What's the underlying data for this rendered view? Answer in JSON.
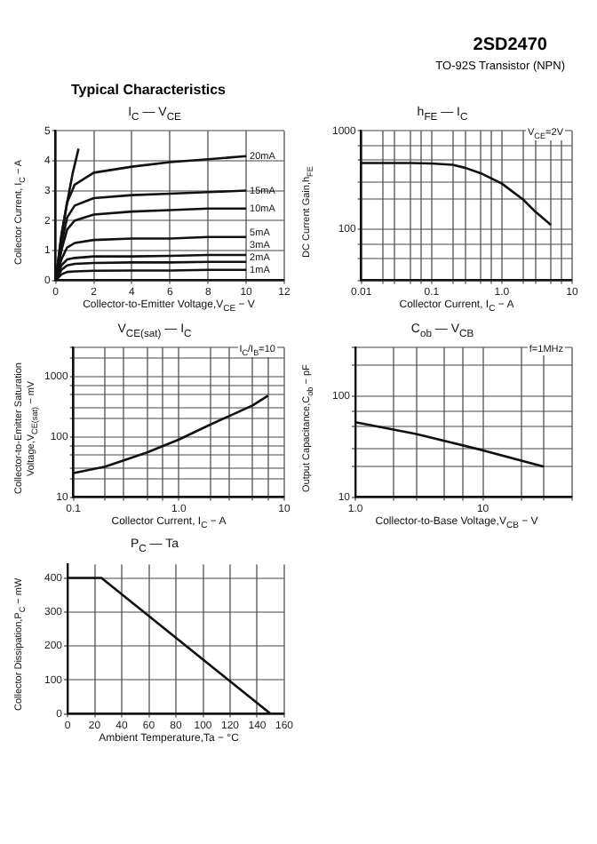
{
  "chart_data": [
    {
      "type": "other",
      "title": "2SD2470",
      "subtitle": "TO-92S Transistor (NPN)",
      "annotations": [
        "Typical Characteristics"
      ]
    },
    {
      "type": "line",
      "title": "I$_{C}$ — V$_{CE}$",
      "xlabel": "Collector-to-Emitter Voltage,V$_{CE}$ − V",
      "ylabel": "Collector Current, I$_{C}$ − A",
      "xlim": [
        0,
        12
      ],
      "xticks": [
        0,
        2,
        4,
        6,
        8,
        10,
        12
      ],
      "ylim": [
        0,
        5
      ],
      "yticks": [
        0,
        1,
        2,
        3,
        4,
        5
      ],
      "grid": true,
      "marker": "none",
      "series": [
        {
          "name": "20mA",
          "color": "#111111",
          "x": [
            0,
            0.3,
            0.6,
            1,
            2,
            4,
            6,
            8,
            10
          ],
          "values": [
            0,
            1.5,
            2.6,
            3.2,
            3.6,
            3.8,
            3.95,
            4.05,
            4.15
          ]
        },
        {
          "name": "15mA",
          "color": "#111111",
          "x": [
            0,
            0.3,
            0.6,
            1,
            2,
            4,
            6,
            8,
            10
          ],
          "values": [
            0,
            1.2,
            2.1,
            2.5,
            2.75,
            2.85,
            2.9,
            2.95,
            3.0
          ]
        },
        {
          "name": "10mA",
          "color": "#111111",
          "x": [
            0,
            0.3,
            0.6,
            1,
            2,
            4,
            6,
            8,
            10
          ],
          "values": [
            0,
            1.0,
            1.7,
            2.0,
            2.2,
            2.3,
            2.35,
            2.4,
            2.4
          ]
        },
        {
          "name": "5mA",
          "color": "#111111",
          "x": [
            0,
            0.3,
            0.6,
            1,
            2,
            4,
            6,
            8,
            10
          ],
          "values": [
            0,
            0.7,
            1.1,
            1.25,
            1.35,
            1.4,
            1.4,
            1.45,
            1.45
          ]
        },
        {
          "name": "3mA",
          "color": "#111111",
          "x": [
            0,
            0.3,
            0.6,
            1,
            2,
            4,
            6,
            8,
            10
          ],
          "values": [
            0,
            0.5,
            0.7,
            0.75,
            0.8,
            0.8,
            0.82,
            0.85,
            0.85
          ]
        },
        {
          "name": "2mA",
          "color": "#111111",
          "x": [
            0,
            0.3,
            0.6,
            1,
            2,
            4,
            6,
            8,
            10
          ],
          "values": [
            0,
            0.35,
            0.5,
            0.55,
            0.58,
            0.6,
            0.6,
            0.62,
            0.62
          ]
        },
        {
          "name": "1mA",
          "color": "#111111",
          "x": [
            0,
            0.3,
            0.6,
            1,
            2,
            4,
            6,
            8,
            10
          ],
          "values": [
            0,
            0.2,
            0.28,
            0.3,
            0.32,
            0.33,
            0.33,
            0.35,
            0.35
          ]
        },
        {
          "color": "#111111",
          "x": [
            0,
            0.3,
            0.6,
            0.9,
            1.2
          ],
          "values": [
            0,
            1.5,
            2.6,
            3.6,
            4.4
          ]
        }
      ]
    },
    {
      "type": "line",
      "title": "h$_{FE}$ — I$_{C}$",
      "xlabel": "Collector Current, I$_{C}$ − A",
      "ylabel": "DC Current Gain,h$_{FE}$",
      "log": "xy",
      "xlim": [
        0.01,
        10
      ],
      "xticks": [
        0.01,
        {
          "value": 0.02,
          "label": null
        },
        {
          "value": 0.03,
          "label": null
        },
        {
          "value": 0.05,
          "label": null
        },
        {
          "value": 0.07,
          "label": null
        },
        0.1,
        {
          "value": 0.2,
          "label": null
        },
        {
          "value": 0.3,
          "label": null
        },
        {
          "value": 0.5,
          "label": null
        },
        {
          "value": 0.7,
          "label": null
        },
        {
          "value": 1,
          "label": "1.0"
        },
        {
          "value": 2,
          "label": null
        },
        {
          "value": 3,
          "label": null
        },
        {
          "value": 5,
          "label": null
        },
        {
          "value": 7,
          "label": null
        },
        10
      ],
      "ylim": [
        30,
        1000
      ],
      "yticks": [
        {
          "value": 30,
          "label": null
        },
        {
          "value": 50,
          "label": null
        },
        {
          "value": 70,
          "label": null
        },
        100,
        {
          "value": 200,
          "label": null
        },
        {
          "value": 300,
          "label": null
        },
        {
          "value": 500,
          "label": null
        },
        {
          "value": 700,
          "label": null
        },
        1000
      ],
      "grid": true,
      "marker": "none",
      "annotations": [
        "V$_{CE}$=2V"
      ],
      "series": [
        {
          "color": "#111111",
          "x": [
            0.01,
            0.05,
            0.1,
            0.2,
            0.3,
            0.5,
            1,
            2,
            3,
            5
          ],
          "values": [
            470,
            470,
            465,
            450,
            420,
            370,
            290,
            200,
            150,
            110
          ]
        }
      ]
    },
    {
      "type": "line",
      "title": "V$_{CE(sat)}$ — I$_{C}$",
      "xlabel": "Collector Current, I$_{C}$ − A",
      "ylabel": "Collector-to-Emitter Saturation Voltage,V$_{CE(sat)}$ − mV",
      "log": "xy",
      "xlim": [
        0.1,
        10
      ],
      "xticks": [
        0.1,
        {
          "value": 0.2,
          "label": null
        },
        {
          "value": 0.3,
          "label": null
        },
        {
          "value": 0.5,
          "label": null
        },
        {
          "value": 0.7,
          "label": null
        },
        {
          "value": 1,
          "label": "1.0"
        },
        {
          "value": 2,
          "label": null
        },
        {
          "value": 3,
          "label": null
        },
        {
          "value": 5,
          "label": null
        },
        {
          "value": 7,
          "label": null
        },
        10
      ],
      "ylim": [
        10,
        3000
      ],
      "yticks": [
        10,
        {
          "value": 20,
          "label": null
        },
        {
          "value": 30,
          "label": null
        },
        {
          "value": 50,
          "label": null
        },
        {
          "value": 70,
          "label": null
        },
        100,
        {
          "value": 200,
          "label": null
        },
        {
          "value": 300,
          "label": null
        },
        {
          "value": 500,
          "label": null
        },
        {
          "value": 700,
          "label": null
        },
        1000,
        {
          "value": 2000,
          "label": null
        },
        {
          "value": 3000,
          "label": null
        }
      ],
      "grid": true,
      "marker": "none",
      "annotations": [
        "I$_{C}$/I$_{B}$=10"
      ],
      "series": [
        {
          "color": "#111111",
          "x": [
            0.1,
            0.2,
            0.5,
            1,
            2,
            5,
            7
          ],
          "values": [
            25,
            32,
            55,
            90,
            160,
            330,
            480
          ]
        }
      ]
    },
    {
      "type": "line",
      "title": "C$_{ob}$ — V$_{CB}$",
      "xlabel": "Collector-to-Base Voltage,V$_{CB}$ − V",
      "ylabel": "Output Capacitance,C$_{ob}$ − pF",
      "log": "xy",
      "xlim": [
        1,
        50
      ],
      "xticks": [
        {
          "value": 1,
          "label": "1.0"
        },
        {
          "value": 2,
          "label": null
        },
        {
          "value": 3,
          "label": null
        },
        {
          "value": 5,
          "label": null
        },
        {
          "value": 7,
          "label": null
        },
        10,
        {
          "value": 20,
          "label": null
        },
        {
          "value": 30,
          "label": null
        },
        {
          "value": 50,
          "label": null
        }
      ],
      "ylim": [
        10,
        300
      ],
      "yticks": [
        10,
        {
          "value": 20,
          "label": null
        },
        {
          "value": 30,
          "label": null
        },
        {
          "value": 50,
          "label": null
        },
        {
          "value": 70,
          "label": null
        },
        100,
        {
          "value": 200,
          "label": null
        },
        {
          "value": 300,
          "label": null
        }
      ],
      "grid": true,
      "marker": "none",
      "annotations": [
        "f=1MHz"
      ],
      "series": [
        {
          "color": "#111111",
          "x": [
            1,
            3,
            10,
            30
          ],
          "values": [
            55,
            42,
            29,
            20
          ]
        }
      ]
    },
    {
      "type": "line",
      "title": "P$_{C}$ — Ta",
      "xlabel": "Ambient Temperature,Ta − °C",
      "ylabel": "Collector Dissipation,P$_{C}$ − mW",
      "xlim": [
        0,
        160
      ],
      "xticks": [
        0,
        20,
        40,
        60,
        80,
        100,
        120,
        140,
        160
      ],
      "ylim": [
        0,
        440
      ],
      "yticks": [
        0,
        100,
        200,
        300,
        400
      ],
      "grid": true,
      "marker": "none",
      "series": [
        {
          "color": "#111111",
          "x": [
            0,
            25,
            150
          ],
          "values": [
            400,
            400,
            0
          ]
        }
      ]
    }
  ]
}
